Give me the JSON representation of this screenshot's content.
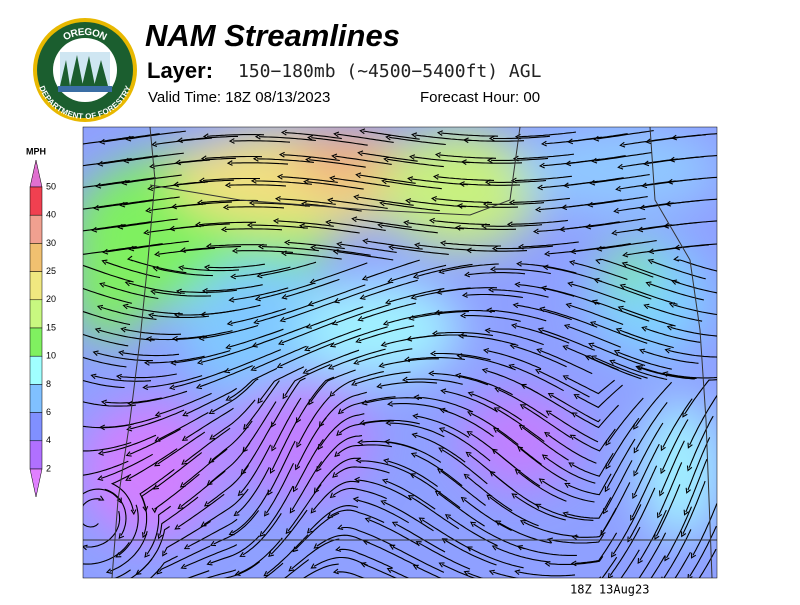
{
  "header": {
    "logo_top": "OREGON",
    "logo_bottom": "DEPARTMENT OF FORESTRY",
    "title": "NAM Streamlines",
    "layer_label": "Layer:",
    "layer_value": "150−180mb (~4500−5400ft) AGL",
    "valid_time": "Valid Time: 18Z 08/13/2023",
    "forecast_hour": "Forecast Hour: 00"
  },
  "legend": {
    "unit": "MPH",
    "labels": [
      "50",
      "40",
      "30",
      "25",
      "20",
      "15",
      "10",
      "8",
      "6",
      "4",
      "2"
    ]
  },
  "footer": {
    "timestamp": "18Z 13Aug23"
  }
}
